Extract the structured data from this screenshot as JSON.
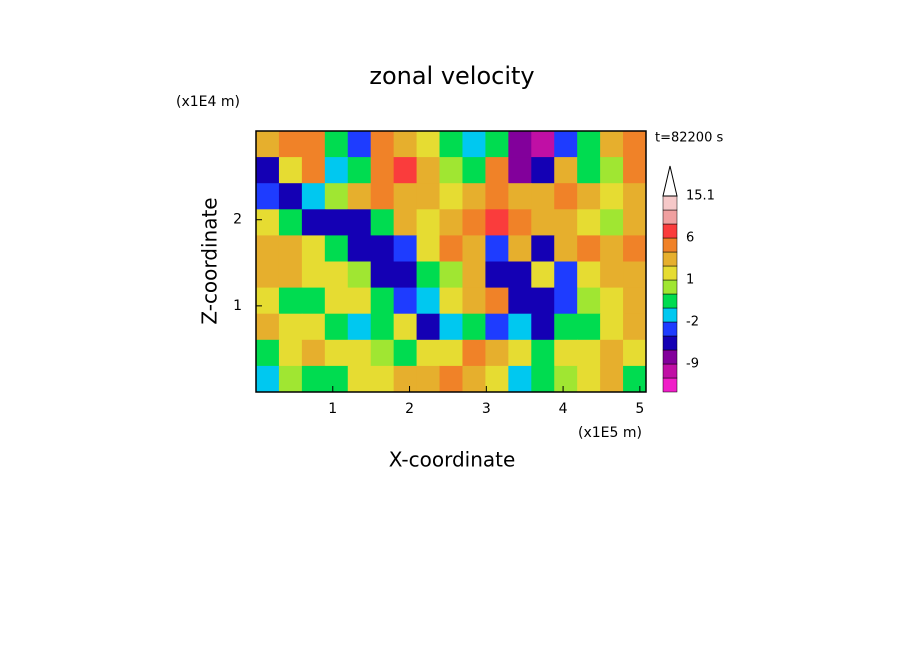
{
  "chart_data": {
    "type": "contour",
    "title": "zonal velocity",
    "x_label": "X-coordinate",
    "y_label": "Z-coordinate",
    "x_unit": "(x1E5 m)",
    "y_unit": "(x1E4 m)",
    "annotation": "t=82200 s",
    "xlim": [
      0,
      5.08
    ],
    "ylim": [
      0,
      3.03
    ],
    "xticks": [
      1,
      2,
      3,
      4,
      5
    ],
    "yticks": [
      1,
      2
    ],
    "z": [
      [
        3,
        5,
        4,
        -1,
        -3,
        4,
        3,
        1,
        -1,
        -2,
        -1,
        -8,
        -10,
        -3,
        -1,
        3,
        4
      ],
      [
        -6,
        1,
        4,
        -2,
        -1,
        5,
        6,
        3,
        0,
        -1,
        4,
        -7,
        -6,
        2,
        -1,
        0,
        5
      ],
      [
        -3,
        -4,
        -2,
        0,
        3,
        4,
        3,
        2,
        1,
        3,
        5,
        3,
        2,
        4,
        2,
        1,
        3
      ],
      [
        1,
        -1,
        -6,
        -6,
        -5,
        -1,
        2,
        1,
        2,
        4,
        6,
        5,
        3,
        2,
        1,
        0,
        2
      ],
      [
        3,
        2,
        1,
        -1,
        -5,
        -6,
        -3,
        1,
        4,
        3,
        -3,
        2,
        -4,
        3,
        4,
        2,
        4
      ],
      [
        2,
        3,
        1,
        1,
        0,
        -4,
        -6,
        -1,
        0,
        3,
        -4,
        -6,
        1,
        -3,
        1,
        2,
        3
      ],
      [
        1,
        -1,
        -1,
        1,
        1,
        -1,
        -3,
        -2,
        1,
        2,
        4,
        -5,
        -5,
        -3,
        0,
        1,
        2
      ],
      [
        2,
        1,
        1,
        -1,
        -2,
        -1,
        1,
        -4,
        -2,
        -1,
        -3,
        -2,
        -6,
        -1,
        -1,
        1,
        3
      ],
      [
        -1,
        1,
        2,
        1,
        1,
        0,
        -1,
        1,
        1,
        4,
        2,
        1,
        -1,
        1,
        1,
        2,
        1
      ],
      [
        -2,
        0,
        -1,
        -1,
        1,
        1,
        2,
        3,
        4,
        3,
        1,
        -2,
        -1,
        0,
        1,
        2,
        -1
      ]
    ],
    "colorbar": {
      "bounds": [
        -15,
        -12,
        -9,
        -6,
        -3,
        -2,
        -1,
        0,
        1,
        2,
        4,
        6,
        9,
        12,
        15.1
      ],
      "colors": [
        "#f01ec8",
        "#c00fa5",
        "#82009b",
        "#1400b4",
        "#1e3cff",
        "#00c8f0",
        "#00dc50",
        "#a0e632",
        "#e6dc32",
        "#e6af2d",
        "#f08228",
        "#fa3c3c",
        "#f0a0a0",
        "#f5c8c8"
      ],
      "ticks": [
        15.1,
        6,
        1,
        -2,
        -9
      ]
    }
  }
}
